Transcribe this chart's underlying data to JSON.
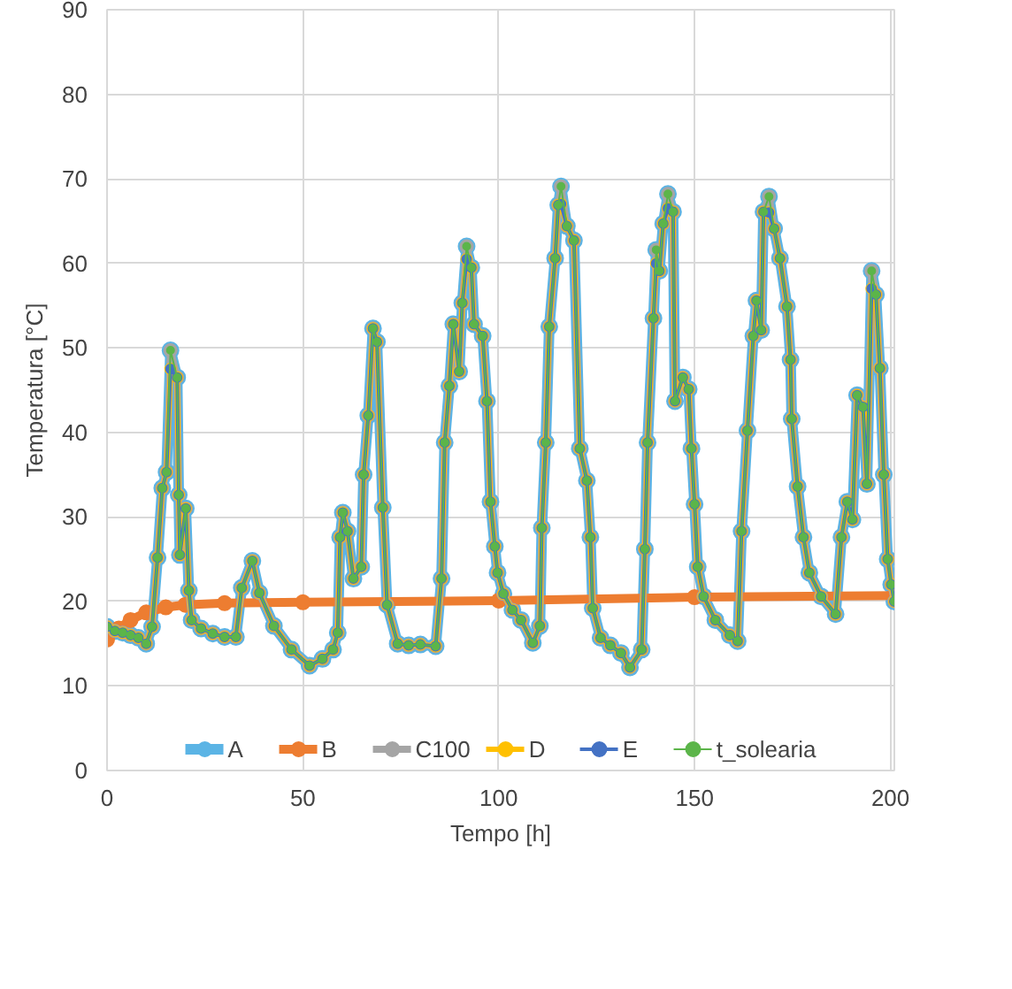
{
  "chart_data": {
    "type": "line",
    "xlabel": "Tempo [h]",
    "ylabel": "Temperatura [°C]",
    "xlim": [
      0,
      201
    ],
    "ylim": [
      0,
      90
    ],
    "xticks": [
      0,
      50,
      100,
      150,
      200
    ],
    "yticks": [
      0,
      10,
      20,
      30,
      40,
      50,
      60,
      70,
      80,
      90
    ],
    "grid": true,
    "legend": "bottom",
    "marker": "circle",
    "line_style": "solid",
    "x": [
      0,
      2,
      4,
      6,
      8,
      10,
      11.5,
      12.9,
      14.1,
      15.2,
      16.2,
      17.9,
      18.3,
      18.6,
      20.1,
      20.9,
      21.6,
      24,
      27,
      30,
      32.9,
      34.4,
      37.1,
      38.9,
      42.6,
      47.1,
      51.7,
      55,
      57.7,
      58.9,
      59.5,
      60.2,
      61.4,
      62.9,
      64.9,
      65.5,
      66.7,
      67.9,
      68.9,
      70.4,
      71.5,
      74.2,
      77,
      80,
      83.9,
      85.4,
      86.2,
      87.4,
      88.4,
      89.9,
      90.7,
      91.8,
      93,
      93.7,
      95.9,
      97,
      97.9,
      99,
      99.7,
      101.2,
      103.5,
      105.7,
      108.7,
      110.5,
      111,
      112,
      112.9,
      114.4,
      115.2,
      115.9,
      117.4,
      119.2,
      120.7,
      122.5,
      123.4,
      124,
      126,
      128.5,
      131.2,
      133.5,
      136.5,
      137.3,
      138,
      139.5,
      140.2,
      141,
      142,
      143.2,
      144.5,
      145,
      147,
      148.5,
      149.2,
      150,
      150.8,
      152.3,
      155.3,
      159,
      161,
      162,
      163.5,
      165,
      165.8,
      167,
      167.6,
      169,
      170.3,
      171.8,
      173.6,
      174.5,
      174.8,
      176.3,
      177.8,
      179.3,
      182.3,
      186,
      187.5,
      189,
      190.3,
      191.5,
      193,
      194,
      195.2,
      196.3,
      197.3,
      198.3,
      199.3,
      200.2,
      201
    ],
    "series": [
      {
        "name": "A",
        "color": "#5bb4e5",
        "values": [
          17,
          16.5,
          16.3,
          16,
          15.7,
          15,
          17,
          25.2,
          33.4,
          35.3,
          49.7,
          46.5,
          32.6,
          25.5,
          31,
          21.3,
          17.8,
          16.8,
          16.2,
          15.8,
          15.8,
          21.6,
          24.8,
          21,
          17.1,
          14.3,
          12.4,
          13.2,
          14.3,
          16.3,
          27.6,
          30.5,
          28.3,
          22.7,
          24.1,
          35,
          42,
          52.3,
          50.7,
          31.1,
          19.6,
          15,
          14.8,
          14.9,
          14.7,
          22.7,
          38.8,
          45.5,
          52.8,
          47.2,
          55.3,
          62,
          59.5,
          52.8,
          51.4,
          43.7,
          31.8,
          26.5,
          23.4,
          20.9,
          19,
          17.8,
          15.1,
          17.1,
          28.7,
          38.8,
          52.5,
          60.6,
          66.9,
          69.1,
          64.4,
          62.7,
          38.1,
          34.3,
          27.6,
          19.2,
          15.7,
          14.8,
          13.9,
          12.2,
          14.3,
          26.2,
          38.8,
          53.5,
          61.6,
          59.1,
          64.7,
          68.2,
          66.1,
          43.7,
          46.5,
          45.1,
          38.1,
          31.5,
          24.1,
          20.6,
          17.8,
          16,
          15.3,
          28.3,
          40.2,
          51.4,
          55.6,
          52.1,
          66.1,
          67.9,
          64.1,
          60.6,
          54.9,
          48.6,
          41.6,
          33.6,
          27.6,
          23.4,
          20.6,
          18.5,
          27.6,
          31.8,
          29.7,
          44.4,
          43,
          33.9,
          59.1,
          56.3,
          47.6,
          35,
          25,
          22,
          20
        ]
      },
      {
        "name": "B",
        "color": "#ed7d31",
        "x": [
          0,
          3,
          6,
          10,
          15,
          20,
          30,
          50,
          100,
          150,
          201
        ],
        "values": [
          15.5,
          16.8,
          17.8,
          18.7,
          19.3,
          19.6,
          19.8,
          19.9,
          20.1,
          20.5,
          20.7
        ]
      },
      {
        "name": "C100",
        "color": "#a5a5a5",
        "values": [
          17,
          16.5,
          16.3,
          16,
          15.7,
          15,
          17,
          25.2,
          33.4,
          35.3,
          49.7,
          46.5,
          32.6,
          25.5,
          31,
          21.3,
          17.8,
          16.8,
          16.2,
          15.8,
          15.8,
          21.6,
          24.8,
          21,
          17.1,
          14.3,
          12.4,
          13.2,
          14.3,
          16.3,
          27.6,
          30.5,
          28.3,
          22.7,
          24.1,
          35,
          42,
          52.3,
          50.7,
          31.1,
          19.6,
          15,
          14.8,
          14.9,
          14.7,
          22.7,
          38.8,
          45.5,
          52.8,
          47.2,
          55.3,
          62,
          59.5,
          52.8,
          51.4,
          43.7,
          31.8,
          26.5,
          23.4,
          20.9,
          19,
          17.8,
          15.1,
          17.1,
          28.7,
          38.8,
          52.5,
          60.6,
          66.9,
          69.1,
          64.4,
          62.7,
          38.1,
          34.3,
          27.6,
          19.2,
          15.7,
          14.8,
          13.9,
          12.2,
          14.3,
          26.2,
          38.8,
          53.5,
          61.6,
          59.1,
          64.7,
          68.2,
          66.1,
          43.7,
          46.5,
          45.1,
          38.1,
          31.5,
          24.1,
          20.6,
          17.8,
          16,
          15.3,
          28.3,
          40.2,
          51.4,
          55.6,
          52.1,
          66.1,
          67.9,
          64.1,
          60.6,
          54.9,
          48.6,
          41.6,
          33.6,
          27.6,
          23.4,
          20.6,
          18.5,
          27.6,
          31.8,
          29.7,
          44.4,
          43,
          33.9,
          59.1,
          56.3,
          47.6,
          35,
          25,
          22,
          20
        ]
      },
      {
        "name": "D",
        "color": "#ffc000",
        "values": [
          17,
          16.5,
          16.3,
          16,
          15.7,
          15,
          17,
          25.2,
          33.4,
          35.3,
          47.5,
          46.5,
          32.6,
          25.5,
          31,
          21.3,
          17.8,
          16.8,
          16.2,
          15.8,
          15.8,
          21.6,
          24.8,
          21,
          17.1,
          14.3,
          12.4,
          13.2,
          14.3,
          16.3,
          27.6,
          30.5,
          28.3,
          22.7,
          24.1,
          35,
          42,
          52.3,
          50.7,
          31.1,
          19.6,
          15,
          14.8,
          14.9,
          14.7,
          22.7,
          38.8,
          45.5,
          52.8,
          47.2,
          55.3,
          60.5,
          59.5,
          52.8,
          51.4,
          43.7,
          31.8,
          26.5,
          23.4,
          20.9,
          19,
          17.8,
          15.1,
          17.1,
          28.7,
          38.8,
          52.5,
          60.6,
          66.9,
          67,
          64.4,
          62.7,
          38.1,
          34.3,
          27.6,
          19.2,
          15.7,
          14.8,
          13.9,
          12.2,
          14.3,
          26.2,
          38.8,
          53.5,
          60,
          59.1,
          64.7,
          66.5,
          66.1,
          43.7,
          46.5,
          45.1,
          38.1,
          31.5,
          24.1,
          20.6,
          17.8,
          16,
          15.3,
          28.3,
          40.2,
          51.4,
          55.6,
          52.1,
          66.1,
          66,
          64.1,
          60.6,
          54.9,
          48.6,
          41.6,
          33.6,
          27.6,
          23.4,
          20.6,
          18.5,
          27.6,
          31.8,
          29.7,
          44.4,
          43,
          33.9,
          57,
          56.3,
          47.6,
          35,
          25,
          22,
          20
        ]
      },
      {
        "name": "E",
        "color": "#4472c4",
        "values": [
          17,
          16.5,
          16.3,
          16,
          15.7,
          15,
          17,
          25.2,
          33.4,
          35.3,
          47.5,
          46.5,
          32.6,
          25.5,
          31,
          21.3,
          17.8,
          16.8,
          16.2,
          15.8,
          15.8,
          21.6,
          24.8,
          21,
          17.1,
          14.3,
          12.4,
          13.2,
          14.3,
          16.3,
          27.6,
          30.5,
          28.3,
          22.7,
          24.1,
          35,
          42,
          52.3,
          50.7,
          31.1,
          19.6,
          15,
          14.8,
          14.9,
          14.7,
          22.7,
          38.8,
          45.5,
          52.8,
          47.2,
          55.3,
          60.5,
          59.5,
          52.8,
          51.4,
          43.7,
          31.8,
          26.5,
          23.4,
          20.9,
          19,
          17.8,
          15.1,
          17.1,
          28.7,
          38.8,
          52.5,
          60.6,
          66.9,
          67,
          64.4,
          62.7,
          38.1,
          34.3,
          27.6,
          19.2,
          15.7,
          14.8,
          13.9,
          12.2,
          14.3,
          26.2,
          38.8,
          53.5,
          60,
          59.1,
          64.7,
          66.5,
          66.1,
          43.7,
          46.5,
          45.1,
          38.1,
          31.5,
          24.1,
          20.6,
          17.8,
          16,
          15.3,
          28.3,
          40.2,
          51.4,
          55.6,
          52.1,
          66.1,
          66,
          64.1,
          60.6,
          54.9,
          48.6,
          41.6,
          33.6,
          27.6,
          23.4,
          20.6,
          18.5,
          27.6,
          31.8,
          29.7,
          44.4,
          43,
          33.9,
          57,
          56.3,
          47.6,
          35,
          25,
          22,
          20
        ]
      },
      {
        "name": "t_solearia",
        "color": "#5cb54a",
        "values": [
          17,
          16.5,
          16.3,
          16,
          15.7,
          15,
          17,
          25.2,
          33.4,
          35.3,
          49.7,
          46.5,
          32.6,
          25.5,
          31,
          21.3,
          17.8,
          16.8,
          16.2,
          15.8,
          15.8,
          21.6,
          24.8,
          21,
          17.1,
          14.3,
          12.4,
          13.2,
          14.3,
          16.3,
          27.6,
          30.5,
          28.3,
          22.7,
          24.1,
          35,
          42,
          52.3,
          50.7,
          31.1,
          19.6,
          15,
          14.8,
          14.9,
          14.7,
          22.7,
          38.8,
          45.5,
          52.8,
          47.2,
          55.3,
          62,
          59.5,
          52.8,
          51.4,
          43.7,
          31.8,
          26.5,
          23.4,
          20.9,
          19,
          17.8,
          15.1,
          17.1,
          28.7,
          38.8,
          52.5,
          60.6,
          66.9,
          69.1,
          64.4,
          62.7,
          38.1,
          34.3,
          27.6,
          19.2,
          15.7,
          14.8,
          13.9,
          12.2,
          14.3,
          26.2,
          38.8,
          53.5,
          61.6,
          59.1,
          64.7,
          68.2,
          66.1,
          43.7,
          46.5,
          45.1,
          38.1,
          31.5,
          24.1,
          20.6,
          17.8,
          16,
          15.3,
          28.3,
          40.2,
          51.4,
          55.6,
          52.1,
          66.1,
          67.9,
          64.1,
          60.6,
          54.9,
          48.6,
          41.6,
          33.6,
          27.6,
          23.4,
          20.6,
          18.5,
          27.6,
          31.8,
          29.7,
          44.4,
          43,
          33.9,
          59.1,
          56.3,
          47.6,
          35,
          25,
          22,
          20
        ]
      }
    ]
  }
}
